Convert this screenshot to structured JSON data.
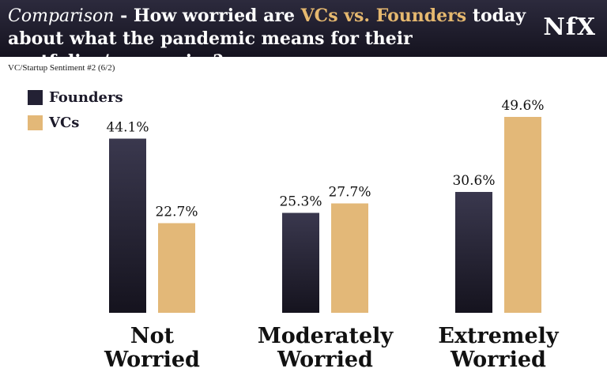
{
  "header": {
    "title_em": "Comparison",
    "title_dash": " - How worried are ",
    "title_vcs": "VCs vs. Founders",
    "title_rest": " today about what the pandemic means for their portfolios/companies?",
    "logo": "NfX"
  },
  "chart_data": {
    "type": "bar",
    "title": "Comparison - How worried are VCs vs. Founders today about what the pandemic means for their portfolios/companies?",
    "subtitle": "VC/Startup Sentiment #2 (6/2)",
    "categories": [
      [
        "Not",
        "Worried"
      ],
      [
        "Moderately",
        "Worried"
      ],
      [
        "Extremely",
        "Worried"
      ]
    ],
    "series": [
      {
        "name": "Founders",
        "values": [
          44.1,
          25.3,
          30.6
        ],
        "labels": [
          "44.1%",
          "25.3%",
          "30.6%"
        ],
        "color": "#232134"
      },
      {
        "name": "VCs",
        "values": [
          22.7,
          27.7,
          49.6
        ],
        "labels": [
          "22.7%",
          "27.7%",
          "49.6%"
        ],
        "color": "#e3b878"
      }
    ],
    "ylim": [
      0,
      55
    ],
    "legend": "top-left",
    "grid": false
  }
}
